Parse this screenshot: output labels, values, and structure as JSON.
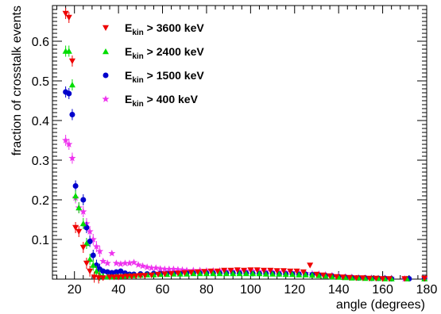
{
  "chart_data": {
    "type": "scatter",
    "xlabel": "angle (degrees)",
    "ylabel": "fraction of crosstalk events",
    "xlim": [
      10,
      180
    ],
    "ylim": [
      0,
      0.69
    ],
    "x_ticks": [
      20,
      40,
      60,
      80,
      100,
      120,
      140,
      160,
      180
    ],
    "y_ticks": [
      0.1,
      0.2,
      0.3,
      0.4,
      0.5,
      0.6
    ],
    "grid": false,
    "legend_position": "top-left",
    "series": [
      {
        "name_prefix": "E",
        "name_sub": "kin",
        "name_suffix": " > 3600 keV",
        "color": "#ee0000",
        "marker": "triangle-down",
        "points": [
          [
            16,
            0.67
          ],
          [
            17.5,
            0.66
          ],
          [
            19,
            0.55
          ],
          [
            20.5,
            0.13
          ],
          [
            22,
            0.12
          ],
          [
            24,
            0.08
          ],
          [
            25.5,
            0.04
          ],
          [
            27,
            0.02
          ],
          [
            29,
            0.005
          ],
          [
            31,
            0.003
          ],
          [
            33,
            0.003
          ],
          [
            36,
            0.005
          ],
          [
            38,
            0.005
          ],
          [
            40,
            0.005
          ],
          [
            42,
            0.006
          ],
          [
            44,
            0.007
          ],
          [
            46,
            0.007
          ],
          [
            48,
            0.008
          ],
          [
            50,
            0.009
          ],
          [
            52,
            0.009
          ],
          [
            55,
            0.01
          ],
          [
            58,
            0.012
          ],
          [
            61,
            0.013
          ],
          [
            64,
            0.014
          ],
          [
            67,
            0.015
          ],
          [
            70,
            0.016
          ],
          [
            73,
            0.017
          ],
          [
            76,
            0.018
          ],
          [
            79,
            0.019
          ],
          [
            82,
            0.02
          ],
          [
            85,
            0.02
          ],
          [
            88,
            0.022
          ],
          [
            91,
            0.022
          ],
          [
            94,
            0.023
          ],
          [
            97,
            0.022
          ],
          [
            100,
            0.023
          ],
          [
            103,
            0.023
          ],
          [
            106,
            0.022
          ],
          [
            109,
            0.022
          ],
          [
            112,
            0.021
          ],
          [
            115,
            0.021
          ],
          [
            118,
            0.02
          ],
          [
            121,
            0.02
          ],
          [
            124,
            0.018
          ],
          [
            127,
            0.035
          ],
          [
            130,
            0.012
          ],
          [
            133,
            0.01
          ],
          [
            136,
            0.008
          ],
          [
            139,
            0.006
          ],
          [
            142,
            0.005
          ],
          [
            145,
            0.004
          ],
          [
            148,
            0.003
          ],
          [
            151,
            0.003
          ],
          [
            154,
            0.002
          ],
          [
            157,
            0.002
          ],
          [
            160,
            0.001
          ],
          [
            163,
            0.001
          ],
          [
            170,
            0.001
          ],
          [
            179,
            0.002
          ]
        ]
      },
      {
        "name_prefix": "E",
        "name_sub": "kin",
        "name_suffix": " > 2400 keV",
        "color": "#00dd00",
        "marker": "triangle-up",
        "points": [
          [
            16,
            0.575
          ],
          [
            17.5,
            0.575
          ],
          [
            19,
            0.49
          ],
          [
            20.5,
            0.21
          ],
          [
            22,
            0.18
          ],
          [
            24,
            0.14
          ],
          [
            25.5,
            0.09
          ],
          [
            27,
            0.05
          ],
          [
            28.5,
            0.035
          ],
          [
            30,
            0.02
          ],
          [
            31.5,
            0.01
          ],
          [
            33,
            0.008
          ],
          [
            35,
            0.006
          ],
          [
            37,
            0.006
          ],
          [
            39,
            0.007
          ],
          [
            41,
            0.007
          ],
          [
            43,
            0.008
          ],
          [
            45,
            0.009
          ],
          [
            47,
            0.009
          ],
          [
            50,
            0.01
          ],
          [
            53,
            0.011
          ],
          [
            56,
            0.011
          ],
          [
            59,
            0.012
          ],
          [
            62,
            0.012
          ],
          [
            65,
            0.013
          ],
          [
            68,
            0.013
          ],
          [
            71,
            0.013
          ],
          [
            74,
            0.014
          ],
          [
            77,
            0.014
          ],
          [
            80,
            0.014
          ],
          [
            83,
            0.014
          ],
          [
            86,
            0.014
          ],
          [
            89,
            0.014
          ],
          [
            92,
            0.014
          ],
          [
            95,
            0.014
          ],
          [
            98,
            0.014
          ],
          [
            101,
            0.014
          ],
          [
            104,
            0.014
          ],
          [
            107,
            0.013
          ],
          [
            110,
            0.013
          ],
          [
            113,
            0.013
          ],
          [
            116,
            0.012
          ],
          [
            119,
            0.012
          ],
          [
            122,
            0.011
          ],
          [
            125,
            0.011
          ],
          [
            128,
            0.01
          ],
          [
            131,
            0.009
          ],
          [
            134,
            0.008
          ],
          [
            137,
            0.006
          ],
          [
            140,
            0.005
          ],
          [
            143,
            0.004
          ],
          [
            146,
            0.003
          ],
          [
            149,
            0.003
          ],
          [
            152,
            0.002
          ],
          [
            155,
            0.002
          ],
          [
            158,
            0.002
          ],
          [
            161,
            0.001
          ],
          [
            164,
            0.001
          ],
          [
            171,
            0.001
          ],
          [
            179,
            0.001
          ]
        ]
      },
      {
        "name_prefix": "E",
        "name_sub": "kin",
        "name_suffix": " > 1500 keV",
        "color": "#0000cc",
        "marker": "circle",
        "points": [
          [
            16,
            0.472
          ],
          [
            17.5,
            0.468
          ],
          [
            19,
            0.415
          ],
          [
            20.5,
            0.235
          ],
          [
            24,
            0.2
          ],
          [
            25.5,
            0.13
          ],
          [
            27,
            0.095
          ],
          [
            28.5,
            0.06
          ],
          [
            30,
            0.035
          ],
          [
            31.5,
            0.025
          ],
          [
            33,
            0.02
          ],
          [
            35,
            0.018
          ],
          [
            37,
            0.016
          ],
          [
            39,
            0.018
          ],
          [
            41,
            0.02
          ],
          [
            43,
            0.015
          ],
          [
            45,
            0.012
          ],
          [
            47,
            0.012
          ],
          [
            50,
            0.013
          ],
          [
            53,
            0.013
          ],
          [
            56,
            0.014
          ],
          [
            59,
            0.014
          ],
          [
            62,
            0.014
          ],
          [
            65,
            0.014
          ],
          [
            68,
            0.014
          ],
          [
            71,
            0.015
          ],
          [
            74,
            0.015
          ],
          [
            77,
            0.015
          ],
          [
            80,
            0.015
          ],
          [
            83,
            0.015
          ],
          [
            86,
            0.015
          ],
          [
            89,
            0.015
          ],
          [
            92,
            0.015
          ],
          [
            95,
            0.015
          ],
          [
            98,
            0.015
          ],
          [
            101,
            0.014
          ],
          [
            104,
            0.014
          ],
          [
            107,
            0.014
          ],
          [
            110,
            0.014
          ],
          [
            113,
            0.013
          ],
          [
            116,
            0.013
          ],
          [
            119,
            0.013
          ],
          [
            122,
            0.012
          ],
          [
            125,
            0.012
          ],
          [
            128,
            0.011
          ],
          [
            131,
            0.01
          ],
          [
            134,
            0.009
          ],
          [
            137,
            0.008
          ],
          [
            140,
            0.006
          ],
          [
            143,
            0.005
          ],
          [
            146,
            0.004
          ],
          [
            149,
            0.003
          ],
          [
            152,
            0.003
          ],
          [
            155,
            0.002
          ],
          [
            158,
            0.002
          ],
          [
            161,
            0.002
          ],
          [
            164,
            0.001
          ],
          [
            172,
            0.001
          ],
          [
            179,
            0.001
          ]
        ]
      },
      {
        "name_prefix": "E",
        "name_sub": "kin",
        "name_suffix": " > 400 keV",
        "color": "#ee33ee",
        "marker": "star",
        "points": [
          [
            16,
            0.35
          ],
          [
            17.5,
            0.34
          ],
          [
            19,
            0.305
          ],
          [
            20.5,
            0.205
          ],
          [
            22,
            0.18
          ],
          [
            24,
            0.17
          ],
          [
            25.5,
            0.14
          ],
          [
            27,
            0.12
          ],
          [
            28.5,
            0.1
          ],
          [
            30,
            0.082
          ],
          [
            31.5,
            0.07
          ],
          [
            33,
            0.045
          ],
          [
            35,
            0.04
          ],
          [
            37,
            0.065
          ],
          [
            39,
            0.04
          ],
          [
            41,
            0.038
          ],
          [
            43,
            0.04
          ],
          [
            45,
            0.04
          ],
          [
            47,
            0.042
          ],
          [
            49,
            0.036
          ],
          [
            51,
            0.033
          ],
          [
            53,
            0.03
          ],
          [
            55,
            0.028
          ],
          [
            57,
            0.028
          ],
          [
            59,
            0.026
          ],
          [
            61,
            0.025
          ],
          [
            63,
            0.025
          ],
          [
            65,
            0.025
          ],
          [
            67,
            0.024
          ],
          [
            69,
            0.023
          ],
          [
            71,
            0.022
          ],
          [
            74,
            0.022
          ],
          [
            77,
            0.022
          ],
          [
            80,
            0.021
          ],
          [
            83,
            0.021
          ],
          [
            86,
            0.021
          ],
          [
            89,
            0.02
          ],
          [
            92,
            0.02
          ],
          [
            95,
            0.02
          ],
          [
            98,
            0.02
          ],
          [
            101,
            0.02
          ],
          [
            104,
            0.019
          ],
          [
            107,
            0.019
          ],
          [
            110,
            0.018
          ],
          [
            113,
            0.018
          ],
          [
            116,
            0.017
          ],
          [
            119,
            0.016
          ],
          [
            122,
            0.016
          ],
          [
            125,
            0.015
          ],
          [
            128,
            0.014
          ],
          [
            131,
            0.013
          ],
          [
            134,
            0.011
          ],
          [
            137,
            0.009
          ],
          [
            140,
            0.008
          ],
          [
            143,
            0.006
          ],
          [
            146,
            0.005
          ],
          [
            149,
            0.004
          ],
          [
            152,
            0.003
          ],
          [
            155,
            0.003
          ],
          [
            158,
            0.002
          ],
          [
            161,
            0.002
          ],
          [
            164,
            0.002
          ],
          [
            170,
            0.001
          ],
          [
            179,
            0.002
          ]
        ]
      }
    ]
  }
}
